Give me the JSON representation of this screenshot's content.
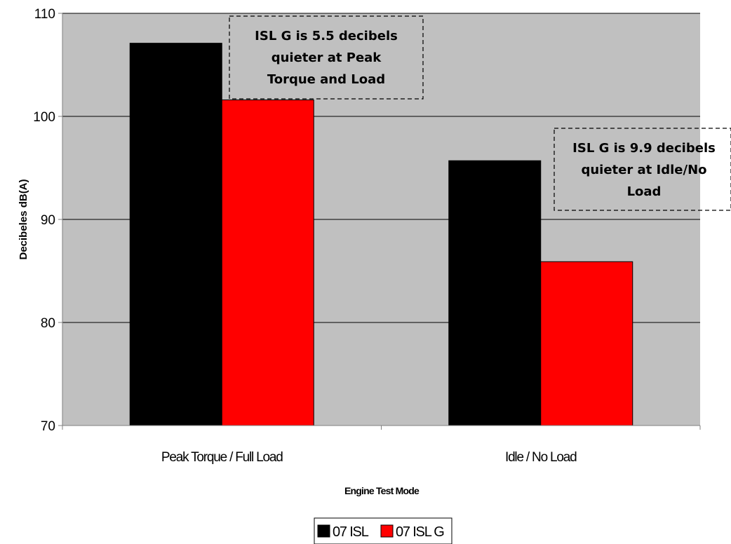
{
  "chart_data": {
    "type": "bar",
    "title": "",
    "xlabel": "Engine Test Mode",
    "ylabel": "Decibeles dB(A)",
    "ylim": [
      70,
      110
    ],
    "yticks": [
      "70",
      "80",
      "90",
      "100",
      "110"
    ],
    "grid": true,
    "categories": [
      "Peak Torque / Full Load",
      "Idle / No Load"
    ],
    "series": [
      {
        "name": "07 ISL",
        "color": "#000000",
        "values": [
          107.1,
          95.7
        ]
      },
      {
        "name": "07 ISL G",
        "color": "#ff0000",
        "values": [
          101.6,
          85.9
        ]
      }
    ],
    "annotations": [
      {
        "lines": [
          "ISL G is 5.5 decibels",
          "quieter at Peak",
          "Torque and Load"
        ]
      },
      {
        "lines": [
          "ISL G is 9.9 decibels",
          "quieter at Idle/No",
          "Load"
        ]
      }
    ],
    "legend_position": "bottom",
    "plot_background": "#c0c0c0"
  }
}
